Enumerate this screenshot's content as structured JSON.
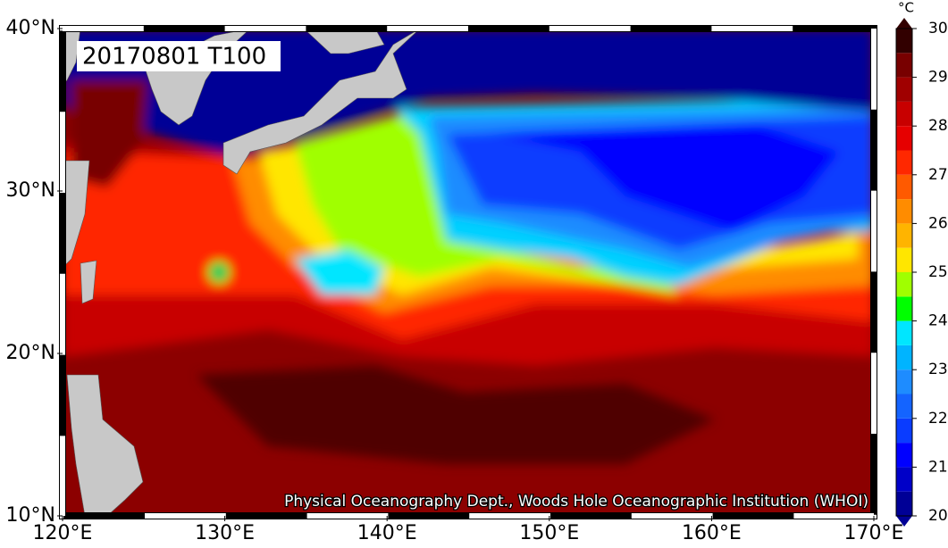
{
  "map": {
    "title": "20170801 T100",
    "credit": "Physical Oceanography Dept., Woods Hole Oceanographic Institution (WHOI)",
    "xlim": [
      120,
      170
    ],
    "ylim": [
      10,
      40
    ],
    "xticks": [
      {
        "value": 120,
        "label": "120°E"
      },
      {
        "value": 130,
        "label": "130°E"
      },
      {
        "value": 140,
        "label": "140°E"
      },
      {
        "value": 150,
        "label": "150°E"
      },
      {
        "value": 160,
        "label": "160°E"
      },
      {
        "value": 170,
        "label": "170°E"
      }
    ],
    "yticks": [
      {
        "value": 10,
        "label": "10°N"
      },
      {
        "value": 20,
        "label": "20°N"
      },
      {
        "value": 30,
        "label": "30°N"
      },
      {
        "value": 40,
        "label": "40°N"
      }
    ],
    "colorbar": {
      "unit": "°C",
      "lim": [
        20,
        30
      ],
      "ticks": [
        20,
        21,
        22,
        23,
        24,
        25,
        26,
        27,
        28,
        29,
        30
      ],
      "colors": [
        "#000096",
        "#0000c8",
        "#0000ff",
        "#0a3cff",
        "#1464ff",
        "#1e8cff",
        "#00b4ff",
        "#00e6ff",
        "#00ff00",
        "#a0ff00",
        "#ffe600",
        "#ffb400",
        "#ff8c00",
        "#ff5a00",
        "#ff2800",
        "#e60000",
        "#c80000",
        "#a00000",
        "#780000",
        "#320000"
      ]
    }
  }
}
